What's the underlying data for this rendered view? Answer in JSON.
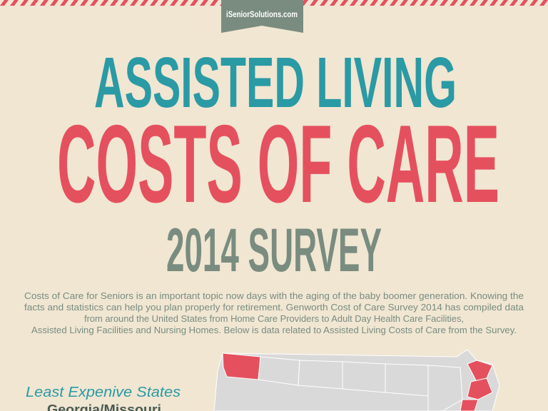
{
  "header": {
    "site": "iSeniorSolutions.com"
  },
  "title": {
    "line1": "ASSISTED LIVING",
    "line2": "COSTS OF CARE",
    "line3": "2014 SURVEY"
  },
  "intro": {
    "lines": [
      "Costs of Care for Seniors is an important topic now days with the aging of the baby boomer generation.  Knowing the",
      "facts and statistics can help you plan properly for retirement.  Genworth Cost of Care Survey 2014 has compiled data",
      "from around the United States from Home Care Providers to Adult Day Health Care Facilities,",
      "Assisted Living Facilities and Nursing Homes.  Below is data related to Assisted Living Costs of Care from the Survey."
    ]
  },
  "sidebar": {
    "heading": "Least Expenive States",
    "states": "Georgia/Missouri"
  }
}
